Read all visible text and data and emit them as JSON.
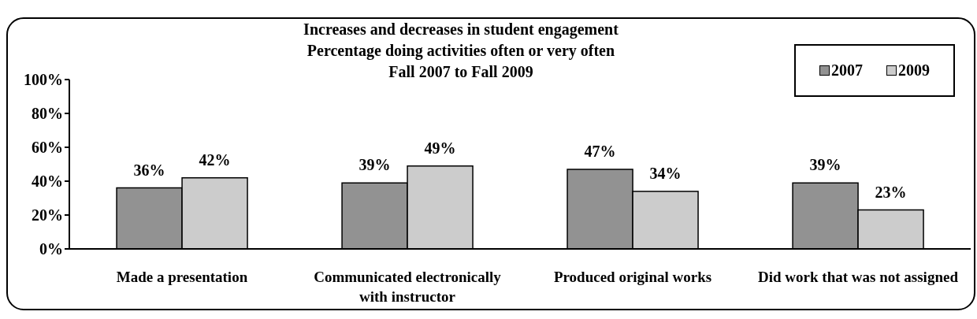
{
  "chart_data": {
    "type": "bar",
    "title": "Increases and decreases in student engagement",
    "subtitle": "Percentage doing activities often or very often\nFall 2007 to Fall 2009",
    "categories": [
      "Made a presentation",
      "Communicated electronically\nwith instructor",
      "Produced original works",
      "Did work that was not assigned"
    ],
    "series": [
      {
        "name": "2007",
        "color": "#929292",
        "values": [
          36,
          39,
          47,
          39
        ],
        "value_labels": [
          "36%",
          "39%",
          "47%",
          "39%"
        ]
      },
      {
        "name": "2009",
        "color": "#cccccc",
        "values": [
          42,
          49,
          34,
          23
        ],
        "value_labels": [
          "42%",
          "49%",
          "34%",
          "23%"
        ]
      }
    ],
    "ylim": [
      0,
      100
    ],
    "yticks": [
      {
        "value": 0,
        "label": "0%"
      },
      {
        "value": 20,
        "label": "20%"
      },
      {
        "value": 40,
        "label": "40%"
      },
      {
        "value": 60,
        "label": "60%"
      },
      {
        "value": 80,
        "label": "80%"
      },
      {
        "value": 100,
        "label": "100%"
      }
    ],
    "grid": false,
    "legend": "top right"
  }
}
